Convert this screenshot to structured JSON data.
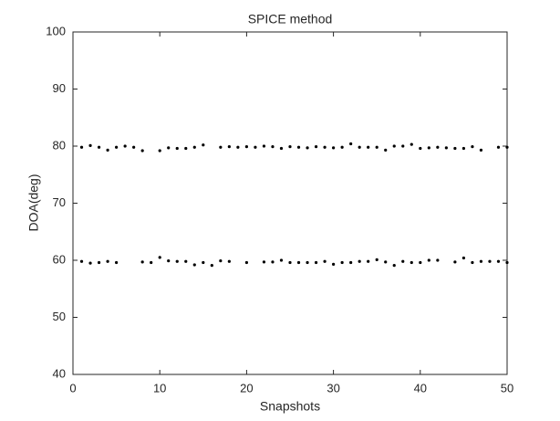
{
  "chart_data": {
    "type": "scatter",
    "title": "SPICE method",
    "xlabel": "Snapshots",
    "ylabel": "DOA(deg)",
    "x": [
      1,
      2,
      3,
      4,
      5,
      6,
      7,
      8,
      9,
      10,
      11,
      12,
      13,
      14,
      15,
      16,
      17,
      18,
      19,
      20,
      21,
      22,
      23,
      24,
      25,
      26,
      27,
      28,
      29,
      30,
      31,
      32,
      33,
      34,
      35,
      36,
      37,
      38,
      39,
      40,
      41,
      42,
      43,
      44,
      45,
      46,
      47,
      48,
      49,
      50
    ],
    "series": [
      {
        "color": "#000000",
        "values": [
          79.8,
          80.1,
          79.8,
          79.3,
          79.8,
          80.0,
          79.8,
          79.2,
          null,
          79.2,
          79.7,
          79.6,
          79.6,
          79.8,
          80.2,
          null,
          79.8,
          79.9,
          79.8,
          79.9,
          79.8,
          80.0,
          79.9,
          79.6,
          79.9,
          79.8,
          79.7,
          79.9,
          79.8,
          79.7,
          79.8,
          80.4,
          79.8,
          79.8,
          79.8,
          79.3,
          80.0,
          80.0,
          80.3,
          79.6,
          79.7,
          79.8,
          79.7,
          79.6,
          79.6,
          79.9,
          79.3,
          null,
          79.8,
          79.8
        ]
      },
      {
        "color": "#000000",
        "values": [
          59.8,
          59.5,
          59.6,
          59.8,
          59.6,
          null,
          null,
          59.7,
          59.6,
          60.5,
          59.9,
          59.8,
          59.8,
          59.2,
          59.6,
          59.1,
          59.9,
          59.8,
          null,
          59.6,
          null,
          59.7,
          59.7,
          60.0,
          59.6,
          59.6,
          59.6,
          59.6,
          59.8,
          59.3,
          59.6,
          59.6,
          59.8,
          59.8,
          60.1,
          59.7,
          59.1,
          59.8,
          59.6,
          59.6,
          60.0,
          60.0,
          null,
          59.7,
          60.4,
          59.6,
          59.8,
          59.8,
          59.8,
          59.6
        ]
      }
    ],
    "xlim": [
      0,
      50
    ],
    "xticks": [
      0,
      10,
      20,
      30,
      40,
      50
    ],
    "ylim": [
      40,
      100
    ],
    "yticks": [
      40,
      50,
      60,
      70,
      80,
      90,
      100
    ]
  }
}
